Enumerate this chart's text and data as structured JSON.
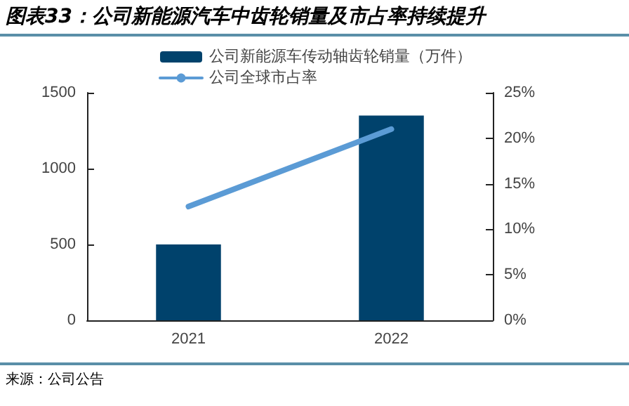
{
  "chart_data": {
    "type": "bar",
    "title": "图表33：公司新能源汽车中齿轮销量及市占率持续提升",
    "categories": [
      "2021",
      "2022"
    ],
    "series": [
      {
        "name": "公司新能源车传动轴齿轮销量（万件）",
        "color": "#00426c",
        "values": [
          500,
          1350
        ]
      },
      {
        "name": "公司全球市占率",
        "type": "line",
        "axis": "y2",
        "color": "#5b9bd5",
        "values": [
          12.5,
          21
        ]
      }
    ],
    "ylim": [
      0,
      1500
    ],
    "yticks": [
      0,
      500,
      1000,
      1500
    ],
    "y2lim": [
      0,
      25
    ],
    "y2ticks": [
      {
        "value": 0,
        "label": "0%"
      },
      {
        "value": 5,
        "label": "5%"
      },
      {
        "value": 10,
        "label": "10%"
      },
      {
        "value": 15,
        "label": "15%"
      },
      {
        "value": 20,
        "label": "20%"
      },
      {
        "value": 25,
        "label": "25%"
      }
    ],
    "grid": false,
    "legend": "top",
    "marker": "none",
    "annotations": [
      "来源：公司公告"
    ]
  }
}
